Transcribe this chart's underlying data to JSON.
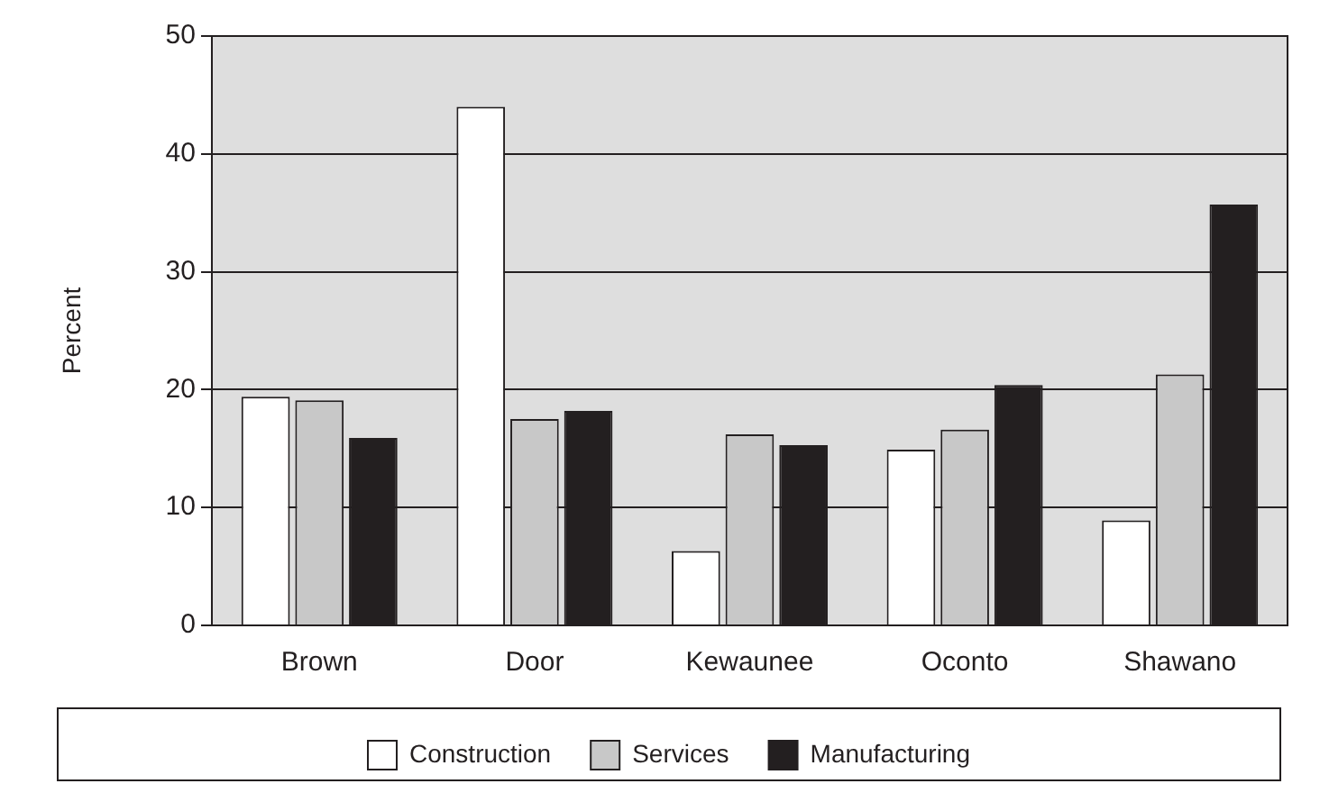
{
  "chart_data": {
    "type": "bar",
    "ylabel": "Percent",
    "categories": [
      "Brown",
      "Door",
      "Kewaunee",
      "Oconto",
      "Shawano"
    ],
    "series": [
      {
        "name": "Construction",
        "color": "#ffffff",
        "values": [
          19.4,
          44.0,
          6.3,
          14.9,
          8.9
        ]
      },
      {
        "name": "Services",
        "color": "#c8c8c8",
        "values": [
          19.1,
          17.5,
          16.2,
          16.6,
          21.3
        ]
      },
      {
        "name": "Manufacturing",
        "color": "#231f20",
        "values": [
          15.9,
          18.2,
          15.3,
          20.4,
          35.7
        ]
      }
    ],
    "ylim": [
      0,
      50
    ],
    "yticks": [
      0,
      10,
      20,
      30,
      40,
      50
    ],
    "grid": "y",
    "legend": "bottom"
  }
}
